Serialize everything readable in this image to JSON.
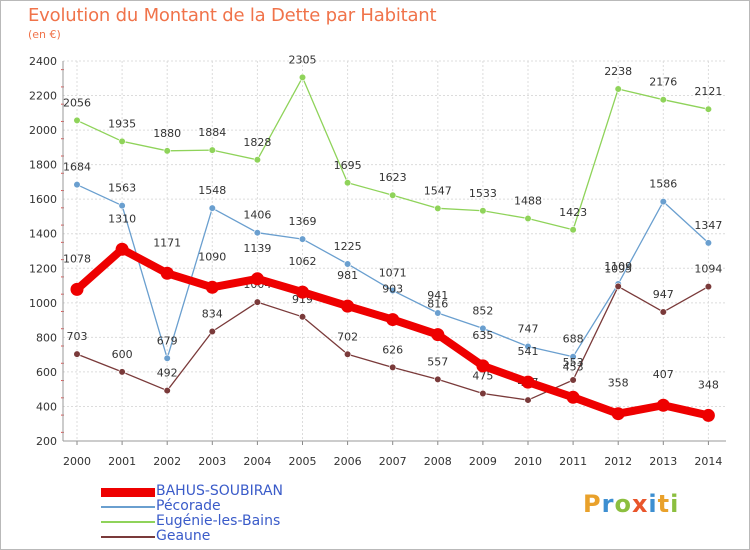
{
  "title": "Evolution du Montant de la Dette par Habitant",
  "subtitle": "(en €)",
  "logo": {
    "text": "Proxiti",
    "letters": [
      {
        "ch": "P",
        "color": "#e9a12b"
      },
      {
        "ch": "r",
        "color": "#3d8fd1"
      },
      {
        "ch": "o",
        "color": "#8cbf3f"
      },
      {
        "ch": "x",
        "color": "#e9552b"
      },
      {
        "ch": "i",
        "color": "#3d8fd1"
      },
      {
        "ch": "t",
        "color": "#e9a12b"
      },
      {
        "ch": "i",
        "color": "#8cbf3f"
      }
    ]
  },
  "chart_data": {
    "type": "line",
    "x": [
      "2000",
      "2001",
      "2002",
      "2003",
      "2004",
      "2005",
      "2006",
      "2007",
      "2008",
      "2009",
      "2010",
      "2011",
      "2012",
      "2013",
      "2014"
    ],
    "ylim": [
      200,
      2400
    ],
    "yticks": [
      "200",
      "400",
      "600",
      "800",
      "1000",
      "1200",
      "1400",
      "1600",
      "1800",
      "2000",
      "2200",
      "2400"
    ],
    "grid": true,
    "legend_position": "bottom-left",
    "series": [
      {
        "name": "BAHUS-SOUBIRAN",
        "color": "#ee0000",
        "emphasis": true,
        "values": [
          1078,
          1310,
          1171,
          1090,
          1139,
          1062,
          981,
          903,
          816,
          635,
          541,
          453,
          358,
          407,
          348
        ],
        "labels": [
          "1078",
          "1310",
          "1171",
          "1090",
          "1139",
          "1062",
          "981",
          "903",
          "816",
          "635",
          "541",
          "453",
          "358",
          "407",
          "348"
        ]
      },
      {
        "name": "Pécorade",
        "color": "#6a9fcf",
        "values": [
          1684,
          1563,
          679,
          1548,
          1406,
          1369,
          1225,
          1071,
          941,
          852,
          747,
          688,
          1109,
          1586,
          1347
        ],
        "labels": [
          "1684",
          "1563",
          "679",
          "1548",
          "1406",
          "1369",
          "1225",
          "1071",
          "941",
          "852",
          "747",
          "688",
          "1109",
          "1586",
          "1347"
        ]
      },
      {
        "name": "Eugénie-les-Bains",
        "color": "#8fd35a",
        "values": [
          2056,
          1935,
          1880,
          1884,
          1828,
          2305,
          1695,
          1623,
          1547,
          1533,
          1488,
          1423,
          2238,
          2176,
          2121
        ],
        "labels": [
          "2056",
          "1935",
          "1880",
          "1884",
          "1828",
          "2305",
          "1695",
          "1623",
          "1547",
          "1533",
          "1488",
          "1423",
          "2238",
          "2176",
          "2121"
        ]
      },
      {
        "name": "Geaune",
        "color": "#7a3a3a",
        "values": [
          703,
          600,
          492,
          834,
          1004,
          919,
          702,
          626,
          557,
          475,
          437,
          553,
          1095,
          947,
          1094
        ],
        "labels": [
          "703",
          "600",
          "492",
          "834",
          "1004",
          "919",
          "702",
          "626",
          "557",
          "475",
          "437",
          "553",
          "1095",
          "947",
          "1094"
        ]
      }
    ]
  }
}
